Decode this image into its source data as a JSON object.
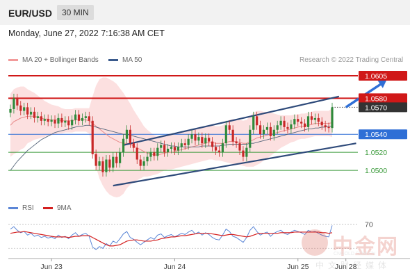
{
  "header": {
    "pair": "EUR/USD",
    "timeframe": "30 MIN"
  },
  "datetime": "Monday, June 27, 2022 7:16:38 AM CET",
  "credit": "Research © 2022 Trading Central",
  "legend_main": [
    {
      "label": "MA 20 + Bollinger Bands",
      "color": "#f29a9a"
    },
    {
      "label": "MA 50",
      "color": "#3a5a8c"
    }
  ],
  "legend_rsi": [
    {
      "label": "RSI",
      "color": "#5b86d6"
    },
    {
      "label": "9MA",
      "color": "#d42020"
    }
  ],
  "watermark": {
    "big": "中金网",
    "url": "CNGOLD.COM.CN",
    "small": "中文财经媒体"
  },
  "chart_data": {
    "type": "candlestick",
    "ylim": [
      1.047,
      1.0615
    ],
    "x_ticks": [
      {
        "label": "Jun 23",
        "index": 12
      },
      {
        "label": "Jun 24",
        "index": 48
      },
      {
        "label": "Jun 25",
        "index": 84
      },
      {
        "label": "Jun 28",
        "index": 98
      }
    ],
    "levels": [
      {
        "value": 1.0605,
        "label": "1.0605",
        "type": "resistance",
        "color": "#d01818"
      },
      {
        "value": 1.058,
        "label": "1.0580",
        "type": "resistance",
        "color": "#d01818"
      },
      {
        "value": 1.057,
        "label": "1.0570",
        "type": "last",
        "color": "#333333"
      },
      {
        "value": 1.054,
        "label": "1.0540",
        "type": "pivot",
        "color": "#2f6fd6"
      },
      {
        "value": 1.052,
        "label": "1.0520",
        "type": "support",
        "color": "#3a9a3a"
      },
      {
        "value": 1.05,
        "label": "1.0500",
        "type": "support",
        "color": "#3a9a3a"
      }
    ],
    "close": [
      1.0568,
      1.058,
      1.0572,
      1.0566,
      1.057,
      1.0562,
      1.0565,
      1.0558,
      1.056,
      1.0555,
      1.0557,
      1.0554,
      1.0556,
      1.0552,
      1.0558,
      1.0553,
      1.0555,
      1.055,
      1.0556,
      1.0562,
      1.0555,
      1.0558,
      1.056,
      1.0555,
      1.0518,
      1.0505,
      1.051,
      1.0498,
      1.0512,
      1.0503,
      1.0515,
      1.0508,
      1.052,
      1.0535,
      1.0545,
      1.053,
      1.0525,
      1.0512,
      1.0505,
      1.051,
      1.0515,
      1.052,
      1.0516,
      1.0525,
      1.0528,
      1.052,
      1.0524,
      1.0526,
      1.0522,
      1.0526,
      1.053,
      1.0528,
      1.0535,
      1.054,
      1.0533,
      1.0537,
      1.053,
      1.0536,
      1.0532,
      1.0526,
      1.0522,
      1.052,
      1.053,
      1.055,
      1.0545,
      1.0532,
      1.053,
      1.0522,
      1.0515,
      1.0525,
      1.0545,
      1.056,
      1.055,
      1.054,
      1.0545,
      1.0548,
      1.0538,
      1.0545,
      1.055,
      1.0555,
      1.0548,
      1.0546,
      1.0551,
      1.0557,
      1.0554,
      1.0552,
      1.0548,
      1.056,
      1.0556,
      1.0558,
      1.0554,
      1.055,
      1.0548,
      1.0547,
      1.057
    ],
    "ma20": [
      1.055,
      1.0554,
      1.0556,
      1.0558,
      1.0559,
      1.056,
      1.056,
      1.056,
      1.0559,
      1.0558,
      1.0557,
      1.0557,
      1.0556,
      1.0556,
      1.0556,
      1.0555,
      1.0555,
      1.0555,
      1.0555,
      1.0556,
      1.0556,
      1.0556,
      1.0556,
      1.0555,
      1.0552,
      1.0549,
      1.0546,
      1.0543,
      1.054,
      1.0537,
      1.0535,
      1.0533,
      1.0531,
      1.053,
      1.053,
      1.0529,
      1.0527,
      1.0525,
      1.0523,
      1.0521,
      1.0519,
      1.0518,
      1.0517,
      1.0517,
      1.0518,
      1.0519,
      1.052,
      1.052,
      1.0521,
      1.0522,
      1.0523,
      1.0524,
      1.0525,
      1.0526,
      1.0527,
      1.0528,
      1.0529,
      1.053,
      1.0531,
      1.0531,
      1.053,
      1.053,
      1.053,
      1.0531,
      1.0532,
      1.0532,
      1.0532,
      1.0531,
      1.053,
      1.053,
      1.0532,
      1.0534,
      1.0536,
      1.0537,
      1.0538,
      1.0539,
      1.054,
      1.0541,
      1.0542,
      1.0543,
      1.0544,
      1.0545,
      1.0546,
      1.0547,
      1.0548,
      1.0549,
      1.0549,
      1.055,
      1.0551,
      1.0552,
      1.0552,
      1.0552,
      1.0552,
      1.0552,
      1.0553
    ],
    "ma50": [
      1.05,
      1.0505,
      1.051,
      1.0514,
      1.0518,
      1.0522,
      1.0525,
      1.0528,
      1.0531,
      1.0534,
      1.0536,
      1.0538,
      1.054,
      1.0542,
      1.0543,
      1.0544,
      1.0545,
      1.0546,
      1.0547,
      1.0548,
      1.0549,
      1.0549,
      1.055,
      1.055,
      1.0549,
      1.0548,
      1.0547,
      1.0546,
      1.0545,
      1.0544,
      1.0543,
      1.0542,
      1.0541,
      1.054,
      1.054,
      1.0539,
      1.0538,
      1.0537,
      1.0536,
      1.0535,
      1.0534,
      1.0533,
      1.0532,
      1.0531,
      1.053,
      1.0529,
      1.0528,
      1.0527,
      1.0527,
      1.0526,
      1.0526,
      1.0526,
      1.0526,
      1.0526,
      1.0526,
      1.0526,
      1.0527,
      1.0527,
      1.0527,
      1.0527,
      1.0527,
      1.0527,
      1.0528,
      1.0528,
      1.0529,
      1.0529,
      1.0529,
      1.0529,
      1.0529,
      1.0529,
      1.053,
      1.053,
      1.0531,
      1.0532,
      1.0533,
      1.0534,
      1.0535,
      1.0536,
      1.0537,
      1.0538,
      1.0539,
      1.054,
      1.0541,
      1.0542,
      1.0543,
      1.0544,
      1.0545,
      1.0546,
      1.0546,
      1.0547,
      1.0547,
      1.0548,
      1.0548,
      1.0549,
      1.0549
    ],
    "bb_width": [
      0.0035,
      0.0036,
      0.0036,
      0.0035,
      0.0034,
      0.003,
      0.0028,
      0.0026,
      0.0024,
      0.0022,
      0.002,
      0.0018,
      0.0017,
      0.0016,
      0.0015,
      0.0014,
      0.0013,
      0.0013,
      0.0013,
      0.0013,
      0.0013,
      0.0013,
      0.0013,
      0.0014,
      0.003,
      0.0045,
      0.0055,
      0.006,
      0.0063,
      0.0064,
      0.0064,
      0.0063,
      0.006,
      0.0056,
      0.005,
      0.0045,
      0.004,
      0.0036,
      0.0032,
      0.0028,
      0.0026,
      0.0024,
      0.0022,
      0.0021,
      0.002,
      0.0019,
      0.0019,
      0.0019,
      0.0019,
      0.0019,
      0.0019,
      0.0019,
      0.0019,
      0.0019,
      0.0019,
      0.0019,
      0.0019,
      0.0019,
      0.0019,
      0.0019,
      0.0019,
      0.0019,
      0.002,
      0.0022,
      0.0024,
      0.0025,
      0.0025,
      0.0025,
      0.0025,
      0.0026,
      0.0028,
      0.003,
      0.003,
      0.0029,
      0.0027,
      0.0026,
      0.0024,
      0.0022,
      0.002,
      0.0018,
      0.0017,
      0.0016,
      0.0015,
      0.0015,
      0.0014,
      0.0014,
      0.0014,
      0.0014,
      0.0014,
      0.0014,
      0.0014,
      0.0014,
      0.0014,
      0.0014,
      0.0016
    ],
    "channel": {
      "upper": [
        [
          33,
          1.0528
        ],
        [
          96,
          1.0582
        ]
      ],
      "lower": [
        [
          30,
          1.0483
        ],
        [
          101,
          1.053
        ]
      ]
    },
    "forecast_arrow": [
      [
        98,
        1.057
      ],
      [
        110,
        1.0601
      ]
    ],
    "rsi": {
      "ylim": [
        20,
        80
      ],
      "level": 70,
      "level_label": "70",
      "rsi": [
        62,
        66,
        60,
        56,
        58,
        52,
        55,
        50,
        52,
        48,
        50,
        47,
        49,
        46,
        52,
        48,
        50,
        46,
        52,
        56,
        50,
        53,
        55,
        50,
        32,
        28,
        33,
        30,
        38,
        34,
        42,
        39,
        46,
        54,
        58,
        48,
        45,
        40,
        36,
        40,
        44,
        48,
        45,
        52,
        54,
        48,
        51,
        53,
        49,
        52,
        55,
        53,
        57,
        60,
        54,
        57,
        52,
        56,
        53,
        48,
        45,
        44,
        52,
        62,
        58,
        50,
        48,
        44,
        40,
        48,
        60,
        66,
        58,
        52,
        55,
        57,
        50,
        55,
        58,
        60,
        55,
        53,
        57,
        60,
        58,
        56,
        53,
        60,
        57,
        58,
        55,
        52,
        50,
        49,
        68
      ],
      "ma9": [
        55,
        56,
        57,
        57,
        58,
        57,
        56,
        55,
        54,
        53,
        52,
        51,
        50,
        49,
        49,
        49,
        49,
        48,
        49,
        50,
        50,
        51,
        51,
        51,
        48,
        45,
        42,
        39,
        36,
        34,
        34,
        35,
        36,
        39,
        42,
        43,
        44,
        44,
        43,
        42,
        42,
        42,
        43,
        44,
        46,
        47,
        48,
        49,
        49,
        50,
        51,
        51,
        52,
        53,
        54,
        55,
        55,
        55,
        55,
        54,
        53,
        52,
        51,
        52,
        53,
        53,
        52,
        51,
        50,
        49,
        50,
        52,
        54,
        55,
        55,
        55,
        55,
        55,
        55,
        56,
        56,
        56,
        56,
        57,
        57,
        57,
        57,
        57,
        57,
        57,
        57,
        56,
        56,
        55,
        56
      ]
    }
  }
}
